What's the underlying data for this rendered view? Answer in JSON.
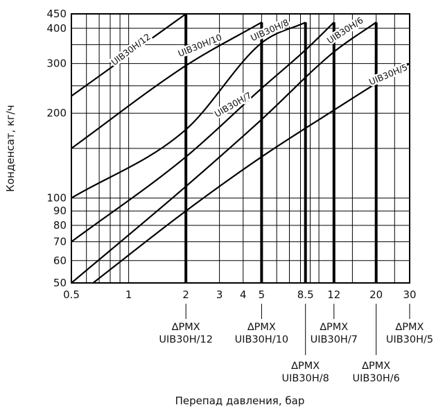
{
  "chart_data": {
    "type": "line",
    "x_scale": "log",
    "y_scale": "log",
    "xlim": [
      0.5,
      30
    ],
    "ylim": [
      50,
      450
    ],
    "xlabel": "Перепад давления, бар",
    "ylabel": "Конденсат, кг/ч",
    "grid": true,
    "x_ticks": [
      {
        "value": 0.5,
        "label": "0.5"
      },
      {
        "value": 1,
        "label": "1"
      },
      {
        "value": 2,
        "label": "2"
      },
      {
        "value": 3,
        "label": "3"
      },
      {
        "value": 4,
        "label": "4"
      },
      {
        "value": 5,
        "label": "5"
      },
      {
        "value": 8.5,
        "label": "8.5"
      },
      {
        "value": 12,
        "label": "12"
      },
      {
        "value": 20,
        "label": "20"
      },
      {
        "value": 30,
        "label": "30"
      }
    ],
    "y_ticks": [
      {
        "value": 50,
        "label": "50"
      },
      {
        "value": 60,
        "label": "60"
      },
      {
        "value": 70,
        "label": "70"
      },
      {
        "value": 80,
        "label": "80"
      },
      {
        "value": 90,
        "label": "90"
      },
      {
        "value": 100,
        "label": "100"
      },
      {
        "value": 200,
        "label": "200"
      },
      {
        "value": 300,
        "label": "300"
      },
      {
        "value": 400,
        "label": "400"
      },
      {
        "value": 450,
        "label": "450"
      }
    ],
    "series": [
      {
        "name": "UIB30H/12",
        "pmx": 2,
        "x": [
          0.5,
          2
        ],
        "y": [
          230,
          450
        ],
        "label_rot": -37
      },
      {
        "name": "UIB30H/10",
        "pmx": 5,
        "x": [
          0.5,
          2,
          5
        ],
        "y": [
          150,
          295,
          420
        ],
        "label_rot": -22
      },
      {
        "name": "UIB30H/8",
        "pmx": 8.5,
        "x": [
          0.5,
          2,
          5,
          8.5
        ],
        "y": [
          100,
          175,
          355,
          420
        ],
        "label_rot": -24
      },
      {
        "name": "UIB30H/7",
        "pmx": 12,
        "x": [
          0.5,
          2,
          5,
          8.5,
          12
        ],
        "y": [
          70,
          140,
          245,
          335,
          420
        ],
        "label_rot": -30
      },
      {
        "name": "UIB30H/6",
        "pmx": 20,
        "x": [
          0.5,
          2,
          5,
          12,
          20
        ],
        "y": [
          50,
          110,
          190,
          330,
          420
        ],
        "label_rot": -33
      },
      {
        "name": "UIB30H/5",
        "pmx": 30,
        "x": [
          0.65,
          2,
          5,
          12,
          20,
          30
        ],
        "y": [
          50,
          90,
          140,
          205,
          255,
          300
        ],
        "label_rot": -23
      }
    ],
    "pmx_annotations": [
      {
        "x": 2,
        "text1": "∆PMX",
        "text2": "UIB30H/12",
        "row": 1
      },
      {
        "x": 5,
        "text1": "∆PMX",
        "text2": "UIB30H/10",
        "row": 1
      },
      {
        "x": 8.5,
        "text1": "∆PMX",
        "text2": "UIB30H/8",
        "row": 2
      },
      {
        "x": 12,
        "text1": "∆PMX",
        "text2": "UIB30H/7",
        "row": 1
      },
      {
        "x": 20,
        "text1": "∆PMX",
        "text2": "UIB30H/6",
        "row": 2
      },
      {
        "x": 30,
        "text1": "∆PMX",
        "text2": "UIB30H/5",
        "row": 1
      }
    ]
  }
}
